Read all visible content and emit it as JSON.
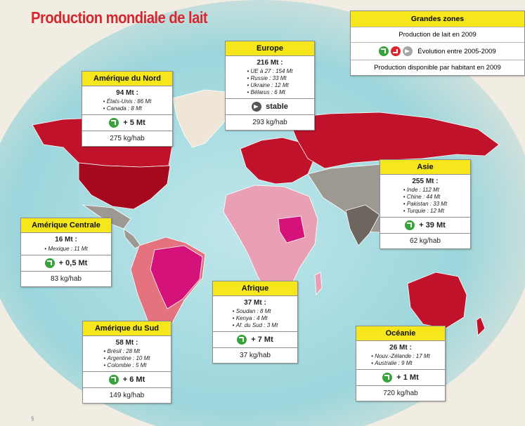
{
  "title": "Production mondiale de lait",
  "colors": {
    "title": "#d8262e",
    "ocean": "#9cd6dc",
    "header_yellow": "#f6e61c",
    "high_production": "#c0122a",
    "medium_production": "#e5727f",
    "africa_pink": "#e9a0b4",
    "magenta": "#d4127a",
    "grey": "#9e9893",
    "light": "#efe6d8"
  },
  "legend": {
    "title": "Grandes zones",
    "production_label": "Production de lait en 2009",
    "evolution_label": "Évolution entre 2005-2009",
    "evolution_icons": [
      "up-arrow-icon",
      "down-arrow-icon",
      "stable-arrow-icon"
    ],
    "per_capita_label": "Production disponible par habitant en 2009"
  },
  "regions": [
    {
      "id": "amerique-du-nord",
      "name": "Amérique du Nord",
      "total": "94 Mt :",
      "items": [
        "États-Unis : 86 Mt",
        "Canada : 8 Mt"
      ],
      "evolution": "+ 5 Mt",
      "trend": "up",
      "per_capita": "275 kg/hab"
    },
    {
      "id": "europe",
      "name": "Europe",
      "total": "216 Mt :",
      "items": [
        "UE à 27 : 154 Mt",
        "Russie : 33 Mt",
        "Ukraine : 12 Mt",
        "Bélarus : 6 Mt"
      ],
      "evolution": "stable",
      "trend": "stable",
      "per_capita": "293 kg/hab"
    },
    {
      "id": "asie",
      "name": "Asie",
      "total": "255 Mt :",
      "items": [
        "Inde : 112 Mt",
        "Chine : 44 Mt",
        "Pakistan : 33 Mt",
        "Turquie : 12 Mt"
      ],
      "evolution": "+ 39 Mt",
      "trend": "up",
      "per_capita": "62 kg/hab"
    },
    {
      "id": "amerique-centrale",
      "name": "Amérique Centrale",
      "total": "16 Mt :",
      "items": [
        "Mexique : 11 Mt"
      ],
      "evolution": "+ 0,5 Mt",
      "trend": "up",
      "per_capita": "83 kg/hab"
    },
    {
      "id": "afrique",
      "name": "Afrique",
      "total": "37 Mt :",
      "items": [
        "Soudan : 8 Mt",
        "Kenya : 4 Mt",
        "Af. du Sud : 3 Mt"
      ],
      "evolution": "+ 7 Mt",
      "trend": "up",
      "per_capita": "37 kg/hab"
    },
    {
      "id": "amerique-du-sud",
      "name": "Amérique du Sud",
      "total": "58 Mt :",
      "items": [
        "Brésil : 28 Mt",
        "Argentine : 10 Mt",
        "Colombie : 5 Mt"
      ],
      "evolution": "+ 6 Mt",
      "trend": "up",
      "per_capita": "149 kg/hab"
    },
    {
      "id": "oceanie",
      "name": "Océanie",
      "total": "26 Mt :",
      "items": [
        "Nouv.-Zélande : 17 Mt",
        "Australie : 9 Mt"
      ],
      "evolution": "+ 1 Mt",
      "trend": "up",
      "per_capita": "720 kg/hab"
    }
  ],
  "footer_mark": "§"
}
